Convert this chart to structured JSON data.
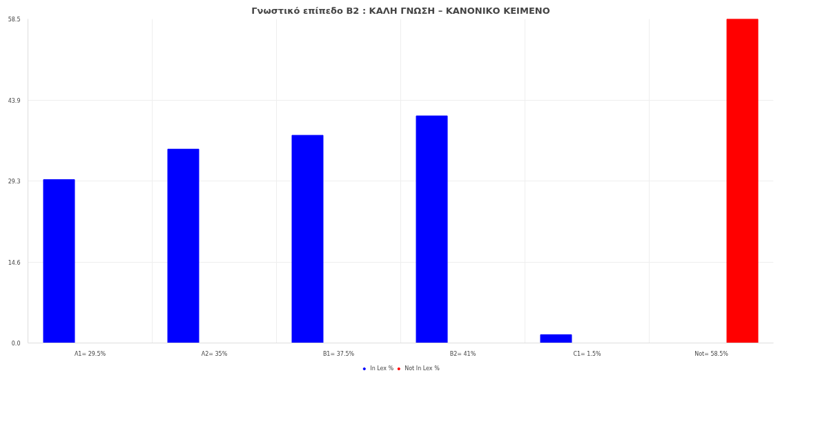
{
  "chart_data": {
    "type": "bar",
    "title": "Γνωστικό επίπεδο Β2 : ΚΑΛΗ ΓΝΩΣΗ – ΚΑΝΟΝΙΚΟ ΚΕΙΜΕΝΟ",
    "categories": [
      "A1= 29.5%",
      "A2= 35%",
      "B1= 37.5%",
      "B2= 41%",
      "C1= 1.5%",
      "Not= 58.5%"
    ],
    "series": [
      {
        "name": "In Lex %",
        "color": "#0000ff",
        "values": [
          29.5,
          35,
          37.5,
          41,
          1.5,
          null
        ]
      },
      {
        "name": "Not In Lex %",
        "color": "#ff0000",
        "values": [
          null,
          null,
          null,
          null,
          null,
          58.5
        ]
      }
    ],
    "ylim": [
      0,
      58.5
    ],
    "yticks": [
      {
        "value": 0,
        "label": "0.0"
      },
      {
        "value": 14.625,
        "label": "14.6"
      },
      {
        "value": 29.25,
        "label": "29.3"
      },
      {
        "value": 43.875,
        "label": "43.9"
      },
      {
        "value": 58.5,
        "label": "58.5"
      }
    ],
    "grid": true,
    "legend": "bottom"
  }
}
